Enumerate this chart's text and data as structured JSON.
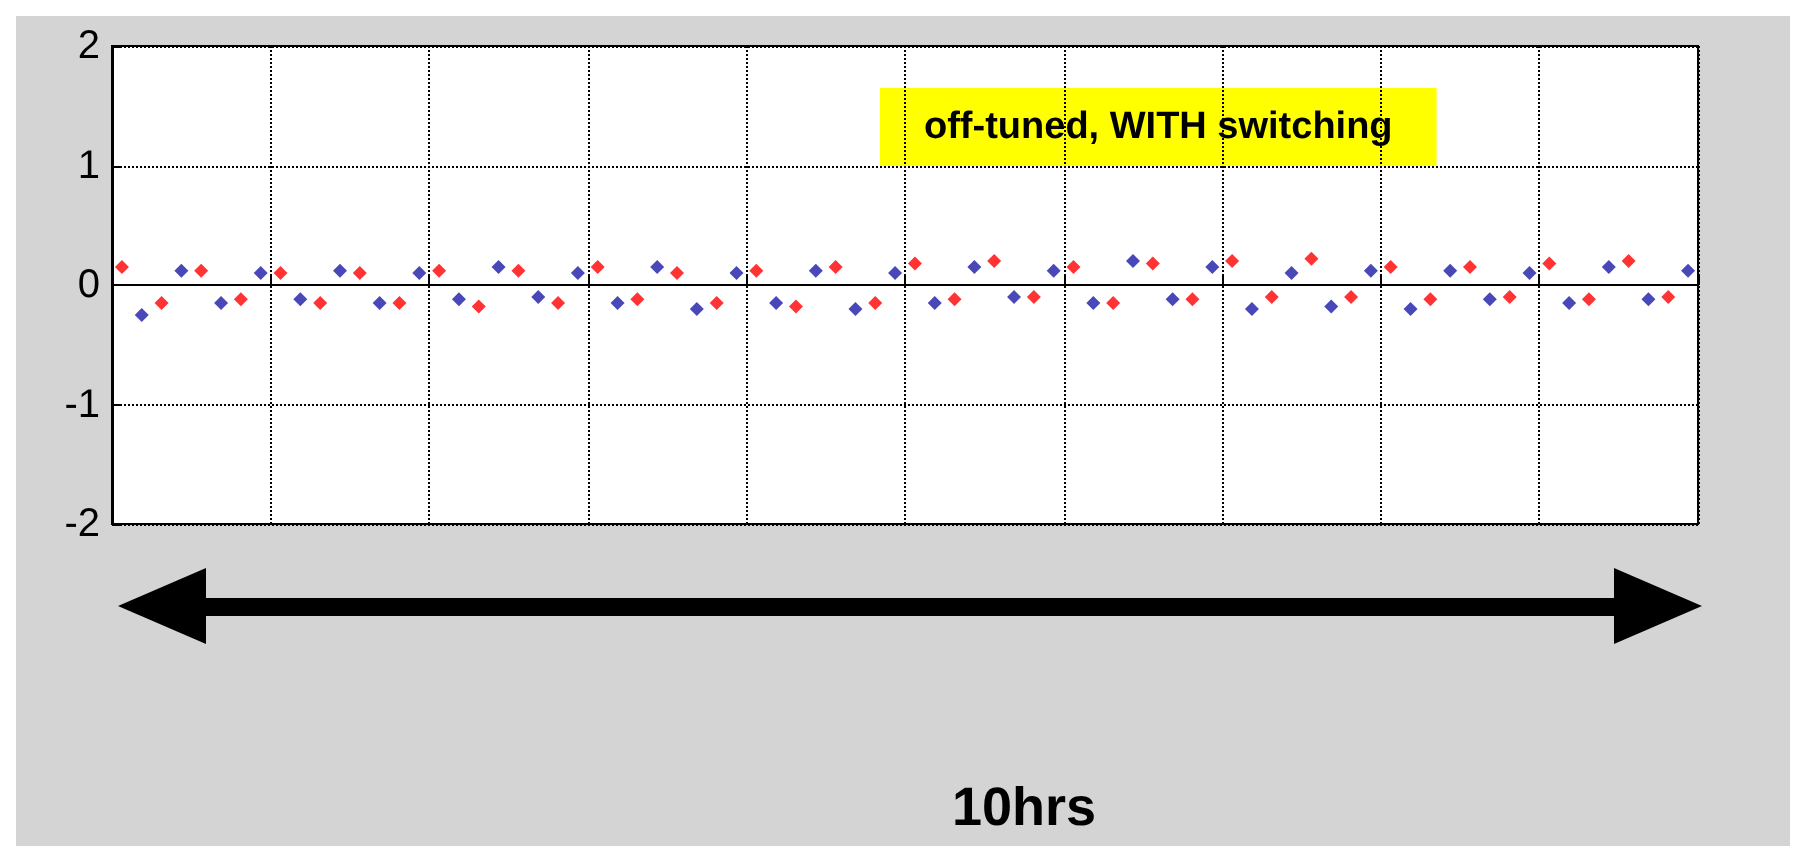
{
  "chart_data": {
    "type": "scatter",
    "categories": [
      null,
      null,
      null,
      null,
      null,
      null,
      null,
      null,
      null,
      null,
      null,
      null,
      null,
      null,
      null,
      null,
      null,
      null,
      null,
      null,
      null,
      null,
      null,
      null,
      null,
      null,
      null,
      null,
      null,
      null,
      null,
      null,
      null,
      null,
      null,
      null,
      null,
      null,
      null,
      null,
      null,
      null,
      null,
      null,
      null,
      null,
      null,
      null,
      null,
      null,
      null,
      null,
      null,
      null,
      null,
      null,
      null,
      null,
      null,
      null,
      null,
      null,
      null,
      null,
      null,
      null,
      null,
      null,
      null,
      null,
      null,
      null,
      null,
      null,
      null,
      null,
      null,
      null,
      null,
      null
    ],
    "ylim": [
      -2,
      2
    ],
    "yticks": [
      -2,
      -1,
      0,
      1,
      2
    ],
    "grid": true,
    "marker": "diamond",
    "annotations": [
      "off-tuned, WITH switching",
      "10hrs"
    ],
    "series": [
      {
        "color": "#1a1aa8",
        "values": [
          null,
          -0.25,
          null,
          0.12,
          null,
          -0.15,
          null,
          0.1,
          null,
          -0.12,
          null,
          0.12,
          null,
          -0.15,
          null,
          0.1,
          null,
          -0.12,
          null,
          0.15,
          null,
          -0.1,
          null,
          0.1,
          null,
          -0.15,
          null,
          0.15,
          null,
          -0.2,
          null,
          0.1,
          null,
          -0.15,
          null,
          0.12,
          null,
          -0.2,
          null,
          0.1,
          null,
          -0.15,
          null,
          0.15,
          null,
          -0.1,
          null,
          0.12,
          null,
          -0.15,
          null,
          0.2,
          null,
          -0.12,
          null,
          0.15,
          null,
          -0.2,
          null,
          0.1,
          null,
          -0.18,
          null,
          0.12,
          null,
          -0.2,
          null,
          0.12,
          null,
          -0.12,
          null,
          0.1,
          null,
          -0.15,
          null,
          0.15,
          null,
          -0.12,
          null,
          0.12
        ]
      },
      {
        "color": "#ff0000",
        "values": [
          0.15,
          null,
          -0.15,
          null,
          0.12,
          null,
          -0.12,
          null,
          0.1,
          null,
          -0.15,
          null,
          0.1,
          null,
          -0.15,
          null,
          0.12,
          null,
          -0.18,
          null,
          0.12,
          null,
          -0.15,
          null,
          0.15,
          null,
          -0.12,
          null,
          0.1,
          null,
          -0.15,
          null,
          0.12,
          null,
          -0.18,
          null,
          0.15,
          null,
          -0.15,
          null,
          0.18,
          null,
          -0.12,
          null,
          0.2,
          null,
          -0.1,
          null,
          0.15,
          null,
          -0.15,
          null,
          0.18,
          null,
          -0.12,
          null,
          0.2,
          null,
          -0.1,
          null,
          0.22,
          null,
          -0.1,
          null,
          0.15,
          null,
          -0.12,
          null,
          0.15,
          null,
          -0.1,
          null,
          0.18,
          null,
          -0.12,
          null,
          0.2,
          null,
          -0.1,
          null
        ]
      }
    ]
  }
}
